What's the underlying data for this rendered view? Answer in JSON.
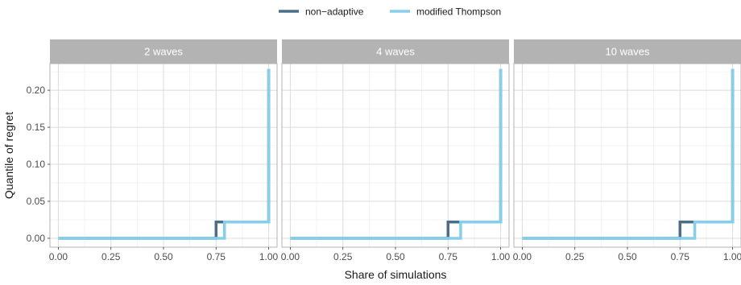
{
  "chart_data": {
    "type": "line",
    "step": true,
    "xlabel": "Share of simulations",
    "ylabel": "Quantile of regret",
    "xlim": [
      -0.04,
      1.04
    ],
    "ylim": [
      -0.012,
      0.236
    ],
    "x_ticks": [
      "0.00",
      "0.25",
      "0.50",
      "0.75",
      "1.00"
    ],
    "x_tick_values": [
      0,
      0.25,
      0.5,
      0.75,
      1.0
    ],
    "y_ticks": [
      "0.00",
      "0.05",
      "0.10",
      "0.15",
      "0.20"
    ],
    "y_tick_values": [
      0,
      0.05,
      0.1,
      0.15,
      0.2
    ],
    "grid": true,
    "legend_position": "top",
    "legend": [
      {
        "name": "non−adaptive",
        "color": "#4a6f8a"
      },
      {
        "name": "modified Thompson",
        "color": "#87ceeb"
      }
    ],
    "panels": [
      {
        "title": "2 waves",
        "series": [
          {
            "name": "non−adaptive",
            "x": [
              0,
              0.75,
              0.75,
              1.0,
              1.0
            ],
            "y": [
              0,
              0,
              0.022,
              0.022,
              0.229
            ]
          },
          {
            "name": "modified Thompson",
            "x": [
              0,
              0.79,
              0.79,
              1.0,
              1.0
            ],
            "y": [
              0,
              0,
              0.022,
              0.022,
              0.229
            ]
          }
        ]
      },
      {
        "title": "4 waves",
        "series": [
          {
            "name": "non−adaptive",
            "x": [
              0,
              0.75,
              0.75,
              1.0,
              1.0
            ],
            "y": [
              0,
              0,
              0.022,
              0.022,
              0.229
            ]
          },
          {
            "name": "modified Thompson",
            "x": [
              0,
              0.81,
              0.81,
              1.0,
              1.0
            ],
            "y": [
              0,
              0,
              0.022,
              0.022,
              0.229
            ]
          }
        ]
      },
      {
        "title": "10 waves",
        "series": [
          {
            "name": "non−adaptive",
            "x": [
              0,
              0.75,
              0.75,
              1.0,
              1.0
            ],
            "y": [
              0,
              0,
              0.022,
              0.022,
              0.229
            ]
          },
          {
            "name": "modified Thompson",
            "x": [
              0,
              0.82,
              0.82,
              1.0,
              1.0
            ],
            "y": [
              0,
              0,
              0.022,
              0.022,
              0.229
            ]
          }
        ]
      }
    ]
  }
}
